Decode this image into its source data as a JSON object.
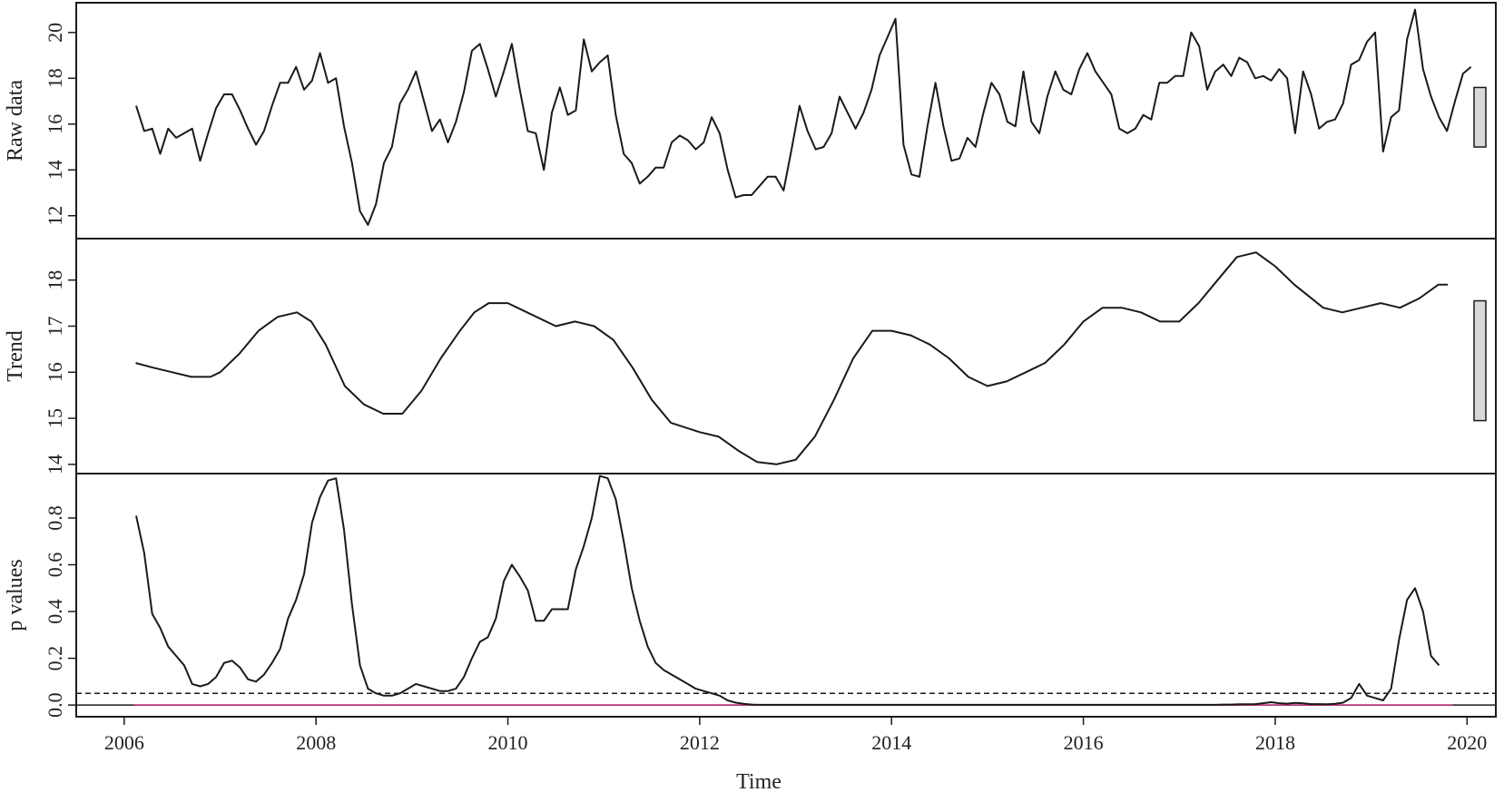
{
  "colors": {
    "line": "#1a1a1a",
    "threshold": "#1a1a1a",
    "zero_line": "#c8327a",
    "range_bar_fill": "#d9d9d9",
    "frame": "#1a1a1a"
  },
  "chart_data": {
    "type": "line",
    "xlabel": "Time",
    "xlim": [
      2005.5,
      2020.3
    ],
    "x_ticks": [
      2006,
      2008,
      2010,
      2012,
      2014,
      2016,
      2018,
      2020
    ],
    "x_tick_labels": [
      "2006",
      "2008",
      "2010",
      "2012",
      "2014",
      "2016",
      "2018",
      "2020"
    ],
    "legend": "none",
    "grid": false,
    "panels": [
      {
        "id": "raw",
        "ylabel": "Raw data",
        "ylim": [
          11.0,
          21.3
        ],
        "y_ticks": [
          12,
          14,
          16,
          18,
          20
        ],
        "y_tick_labels": [
          "12",
          "14",
          "16",
          "18",
          "20"
        ],
        "range_bar": [
          15.0,
          17.6
        ],
        "series": [
          {
            "x_start": 2006.125,
            "x_step": 0.08333,
            "values": [
              16.8,
              15.7,
              15.8,
              14.7,
              15.8,
              15.4,
              15.6,
              15.8,
              14.4,
              15.6,
              16.7,
              17.3,
              17.3,
              16.6,
              15.8,
              15.1,
              15.7,
              16.8,
              17.8,
              17.8,
              18.5,
              17.5,
              17.9,
              19.1,
              17.8,
              18.0,
              15.9,
              14.3,
              12.2,
              11.6,
              12.5,
              14.3,
              15.0,
              16.9,
              17.5,
              18.3,
              17.0,
              15.7,
              16.2,
              15.2,
              16.1,
              17.4,
              19.2,
              19.5,
              18.4,
              17.2,
              18.3,
              19.5,
              17.5,
              15.7,
              15.6,
              14.0,
              16.5,
              17.6,
              16.4,
              16.6,
              19.7,
              18.3,
              18.7,
              19.0,
              16.4,
              14.7,
              14.3,
              13.4,
              13.7,
              14.1,
              14.1,
              15.2,
              15.5,
              15.3,
              14.9,
              15.2,
              16.3,
              15.6,
              14.0,
              12.8,
              12.9,
              12.9,
              13.3,
              13.7,
              13.7,
              13.1,
              14.9,
              16.8,
              15.7,
              14.9,
              15.0,
              15.6,
              17.2,
              16.5,
              15.8,
              16.5,
              17.5,
              19.0,
              19.8,
              20.6,
              15.1,
              13.8,
              13.7,
              15.9,
              17.8,
              15.9,
              14.4,
              14.5,
              15.4,
              15.0,
              16.5,
              17.8,
              17.3,
              16.1,
              15.9,
              18.3,
              16.1,
              15.6,
              17.2,
              18.3,
              17.5,
              17.3,
              18.4,
              19.1,
              18.3,
              17.8,
              17.3,
              15.8,
              15.6,
              15.8,
              16.4,
              16.2,
              17.8,
              17.8,
              18.1,
              18.1,
              20.0,
              19.4,
              17.5,
              18.3,
              18.6,
              18.1,
              18.9,
              18.7,
              18.0,
              18.1,
              17.9,
              18.4,
              18.0,
              15.6,
              18.3,
              17.3,
              15.8,
              16.1,
              16.2,
              16.9,
              18.6,
              18.8,
              19.6,
              20.0,
              14.8,
              16.3,
              16.6,
              19.7,
              21.0,
              18.4,
              17.2,
              16.3,
              15.7,
              17.0,
              18.2,
              18.5
            ]
          }
        ]
      },
      {
        "id": "trend",
        "ylabel": "Trend",
        "ylim": [
          13.8,
          18.9
        ],
        "y_ticks": [
          14,
          15,
          16,
          17,
          18
        ],
        "y_tick_labels": [
          "14",
          "15",
          "16",
          "17",
          "18"
        ],
        "range_bar": [
          14.95,
          17.55
        ],
        "series": [
          {
            "x": [
              2006.12,
              2006.3,
              2006.5,
              2006.7,
              2006.9,
              2007.0,
              2007.2,
              2007.4,
              2007.6,
              2007.8,
              2007.95,
              2008.1,
              2008.3,
              2008.5,
              2008.7,
              2008.9,
              2009.1,
              2009.3,
              2009.5,
              2009.65,
              2009.8,
              2010.0,
              2010.2,
              2010.5,
              2010.7,
              2010.9,
              2011.1,
              2011.3,
              2011.5,
              2011.7,
              2012.0,
              2012.2,
              2012.4,
              2012.6,
              2012.8,
              2013.0,
              2013.2,
              2013.4,
              2013.6,
              2013.8,
              2014.0,
              2014.2,
              2014.4,
              2014.6,
              2014.8,
              2015.0,
              2015.2,
              2015.4,
              2015.6,
              2015.8,
              2016.0,
              2016.2,
              2016.4,
              2016.6,
              2016.8,
              2017.0,
              2017.2,
              2017.4,
              2017.6,
              2017.8,
              2018.0,
              2018.2,
              2018.5,
              2018.7,
              2018.9,
              2019.1,
              2019.3,
              2019.5,
              2019.7,
              2019.8
            ],
            "values": [
              16.2,
              16.1,
              16.0,
              15.9,
              15.9,
              16.0,
              16.4,
              16.9,
              17.2,
              17.3,
              17.1,
              16.6,
              15.7,
              15.3,
              15.1,
              15.1,
              15.6,
              16.3,
              16.9,
              17.3,
              17.5,
              17.5,
              17.3,
              17.0,
              17.1,
              17.0,
              16.7,
              16.1,
              15.4,
              14.9,
              14.7,
              14.6,
              14.3,
              14.05,
              14.0,
              14.1,
              14.6,
              15.4,
              16.3,
              16.9,
              16.9,
              16.8,
              16.6,
              16.3,
              15.9,
              15.7,
              15.8,
              16.0,
              16.2,
              16.6,
              17.1,
              17.4,
              17.4,
              17.3,
              17.1,
              17.1,
              17.5,
              18.0,
              18.5,
              18.6,
              18.3,
              17.9,
              17.4,
              17.3,
              17.4,
              17.5,
              17.4,
              17.6,
              17.9,
              17.9
            ]
          }
        ]
      },
      {
        "id": "pvalues",
        "ylabel": "p values",
        "ylim": [
          -0.05,
          0.99
        ],
        "y_ticks": [
          0.0,
          0.2,
          0.4,
          0.6,
          0.8
        ],
        "y_tick_labels": [
          "0.0",
          "0.2",
          "0.4",
          "0.6",
          "0.8"
        ],
        "threshold": 0.05,
        "zero_line": 0.0,
        "series": [
          {
            "x_start": 2006.125,
            "x_step": 0.08333,
            "values": [
              0.81,
              0.65,
              0.39,
              0.33,
              0.25,
              0.21,
              0.17,
              0.09,
              0.08,
              0.09,
              0.12,
              0.18,
              0.19,
              0.16,
              0.11,
              0.1,
              0.13,
              0.18,
              0.24,
              0.37,
              0.45,
              0.56,
              0.78,
              0.89,
              0.96,
              0.97,
              0.75,
              0.43,
              0.17,
              0.07,
              0.05,
              0.04,
              0.04,
              0.05,
              0.07,
              0.09,
              0.08,
              0.07,
              0.06,
              0.06,
              0.07,
              0.12,
              0.2,
              0.27,
              0.29,
              0.37,
              0.53,
              0.6,
              0.55,
              0.49,
              0.36,
              0.36,
              0.41,
              0.41,
              0.41,
              0.58,
              0.68,
              0.8,
              0.98,
              0.97,
              0.88,
              0.7,
              0.5,
              0.36,
              0.25,
              0.18,
              0.15,
              0.13,
              0.11,
              0.09,
              0.07,
              0.06,
              0.05,
              0.04,
              0.02,
              0.01,
              0.005,
              0.002,
              0.001,
              0.001,
              0.001,
              0.001,
              0.001,
              0.001,
              0.001,
              0.001,
              0.001,
              0.001,
              0.001,
              0.001,
              0.001,
              0.001,
              0.001,
              0.001,
              0.001,
              0.001,
              0.001,
              0.001,
              0.001,
              0.001,
              0.001,
              0.001,
              0.001,
              0.001,
              0.001,
              0.001,
              0.001,
              0.001,
              0.001,
              0.001,
              0.001,
              0.001,
              0.001,
              0.001,
              0.001,
              0.001,
              0.001,
              0.001,
              0.001,
              0.001,
              0.001,
              0.001,
              0.001,
              0.001,
              0.001,
              0.001,
              0.001,
              0.001,
              0.001,
              0.001,
              0.001,
              0.001,
              0.001,
              0.001,
              0.001,
              0.001,
              0.002,
              0.002,
              0.003,
              0.003,
              0.004,
              0.008,
              0.012,
              0.008,
              0.006,
              0.009,
              0.007,
              0.004,
              0.004,
              0.003,
              0.005,
              0.01,
              0.03,
              0.09,
              0.04,
              0.03,
              0.02,
              0.07,
              0.28,
              0.45,
              0.5,
              0.4,
              0.21,
              0.17
            ]
          }
        ]
      }
    ]
  }
}
